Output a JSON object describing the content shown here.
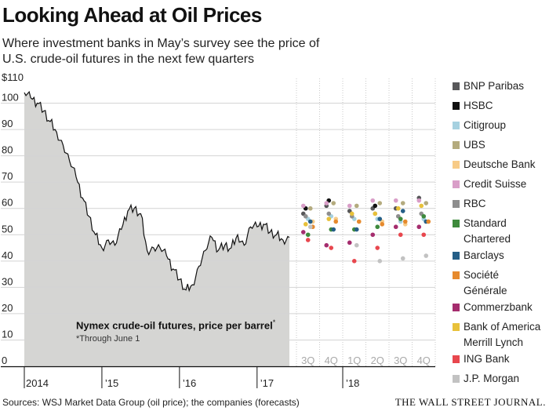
{
  "title": "Looking Ahead at Oil Prices",
  "subtitle": "Where investment banks in May’s survey see the price of U.S. crude-oil futures in the next few quarters",
  "annotation": "Nymex crude-oil futures, price per barrel",
  "annotation_mark": "*",
  "footnote": "*Through June 1",
  "source": "Sources: WSJ Market Data Group (oil price); the companies (forecasts)",
  "masthead": "THE WALL STREET JOURNAL.",
  "chart_data": {
    "type": "line",
    "y_tick_labels": [
      "$110",
      "100",
      "90",
      "80",
      "70",
      "60",
      "50",
      "40",
      "30",
      "20",
      "10",
      "0"
    ],
    "ylim": [
      0,
      110
    ],
    "x_tick_labels": [
      "2014",
      "’15",
      "’16",
      "’17",
      "’18"
    ],
    "forecast_quarter_labels": [
      "3Q",
      "4Q",
      "1Q",
      "2Q",
      "3Q",
      "4Q"
    ],
    "grid": true,
    "legend_position": "right",
    "price_series": {
      "name": "Nymex crude-oil futures",
      "color": "#d5d5d3",
      "line_color": "#111111",
      "x": [
        "2014-01",
        "2014-02",
        "2014-03",
        "2014-04",
        "2014-05",
        "2014-06",
        "2014-07",
        "2014-08",
        "2014-09",
        "2014-10",
        "2014-11",
        "2014-12",
        "2015-01",
        "2015-02",
        "2015-03",
        "2015-04",
        "2015-05",
        "2015-06",
        "2015-07",
        "2015-08",
        "2015-09",
        "2015-10",
        "2015-11",
        "2015-12",
        "2016-01",
        "2016-02",
        "2016-03",
        "2016-04",
        "2016-05",
        "2016-06",
        "2016-07",
        "2016-08",
        "2016-09",
        "2016-10",
        "2016-11",
        "2016-12",
        "2017-01",
        "2017-02",
        "2017-03",
        "2017-04",
        "2017-05",
        "2017-06"
      ],
      "values": [
        104,
        102,
        100,
        97,
        93,
        89,
        84,
        78,
        72,
        64,
        57,
        50,
        45,
        48,
        46,
        52,
        59,
        60,
        58,
        44,
        45,
        45,
        42,
        37,
        33,
        29,
        31,
        38,
        44,
        49,
        44,
        46,
        45,
        50,
        46,
        53,
        53,
        54,
        51,
        50,
        48,
        49
      ]
    },
    "forecasts": {
      "quarters": [
        "3Q 2017",
        "4Q 2017",
        "1Q 2018",
        "2Q 2018",
        "3Q 2018",
        "4Q 2018"
      ],
      "series": [
        {
          "name": "BNP Paribas",
          "color": "#58585a",
          "values": [
            58,
            61,
            59,
            60,
            60,
            64
          ]
        },
        {
          "name": "HSBC",
          "color": "#111111",
          "values": [
            60,
            63,
            null,
            61,
            null,
            null
          ]
        },
        {
          "name": "Citigroup",
          "color": "#a6d1e0",
          "values": [
            56,
            57,
            56,
            56,
            55,
            56
          ]
        },
        {
          "name": "UBS",
          "color": "#b4ab7e",
          "values": [
            60,
            62,
            61,
            62,
            62,
            62
          ]
        },
        {
          "name": "Deutsche Bank",
          "color": "#f7cb87",
          "values": [
            55,
            56,
            55,
            55,
            54,
            55
          ]
        },
        {
          "name": "Credit Suisse",
          "color": "#d99ec8",
          "values": [
            61,
            62,
            61,
            63,
            63,
            63
          ]
        },
        {
          "name": "RBC",
          "color": "#8e8e8e",
          "values": [
            57,
            58,
            57,
            58,
            57,
            58
          ]
        },
        {
          "name": "Standard Chartered",
          "color": "#3e8a3c",
          "values": [
            50,
            52,
            52,
            53,
            56,
            57
          ]
        },
        {
          "name": "Barclays",
          "color": "#245e87",
          "values": [
            55,
            52,
            52,
            56,
            59,
            55
          ]
        },
        {
          "name": "Société Générale",
          "color": "#e68a2e",
          "values": [
            53,
            55,
            55,
            54,
            55,
            55
          ]
        },
        {
          "name": "Commerzbank",
          "color": "#a52d6e",
          "values": [
            51,
            46,
            47,
            50,
            53,
            53
          ]
        },
        {
          "name": "Bank of America Merrill Lynch",
          "color": "#e8c13a",
          "values": [
            54,
            56,
            58,
            58,
            60,
            61
          ]
        },
        {
          "name": "ING Bank",
          "color": "#e8474e",
          "values": [
            48,
            45,
            40,
            45,
            50,
            50
          ]
        },
        {
          "name": "J.P. Morgan",
          "color": "#c2c2c2",
          "values": [
            53,
            null,
            46,
            40,
            41,
            42
          ]
        }
      ]
    }
  }
}
